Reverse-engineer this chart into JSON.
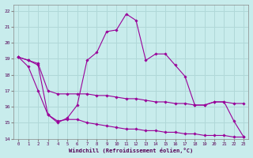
{
  "xlabel": "Windchill (Refroidissement éolien,°C)",
  "bg_color": "#c8ecec",
  "grid_color": "#b0d8d8",
  "line_color": "#990099",
  "ylim": [
    14,
    22.4
  ],
  "xlim": [
    -0.5,
    23.5
  ],
  "yticks": [
    14,
    15,
    16,
    17,
    18,
    19,
    20,
    21,
    22
  ],
  "xticks": [
    0,
    1,
    2,
    3,
    4,
    5,
    6,
    7,
    8,
    9,
    10,
    11,
    12,
    13,
    14,
    15,
    16,
    17,
    18,
    19,
    20,
    21,
    22,
    23
  ],
  "line1_x": [
    0,
    1,
    2,
    3,
    4,
    5,
    6,
    7,
    8,
    9,
    10,
    11,
    12,
    13,
    14,
    15,
    16,
    17,
    18,
    19,
    20,
    21,
    22,
    23
  ],
  "line1_y": [
    19.1,
    18.5,
    17.0,
    15.5,
    15.0,
    15.3,
    16.1,
    18.9,
    19.4,
    20.7,
    20.8,
    21.8,
    21.4,
    18.9,
    19.3,
    19.3,
    18.6,
    17.9,
    16.1,
    16.1,
    16.3,
    16.3,
    15.1,
    14.1
  ],
  "line2_x": [
    0,
    1,
    2,
    3,
    4,
    5,
    6,
    7,
    8,
    9,
    10,
    11,
    12,
    13,
    14,
    15,
    16,
    17,
    18,
    19,
    20,
    21,
    22,
    23
  ],
  "line2_y": [
    19.1,
    18.9,
    18.7,
    17.0,
    16.8,
    16.8,
    16.8,
    16.8,
    16.7,
    16.7,
    16.6,
    16.5,
    16.5,
    16.4,
    16.3,
    16.3,
    16.2,
    16.2,
    16.1,
    16.1,
    16.3,
    16.3,
    16.2,
    16.2
  ],
  "line3_x": [
    0,
    1,
    2,
    3,
    4,
    5,
    6,
    7,
    8,
    9,
    10,
    11,
    12,
    13,
    14,
    15,
    16,
    17,
    18,
    19,
    20,
    21,
    22,
    23
  ],
  "line3_y": [
    19.1,
    18.9,
    18.6,
    15.5,
    15.1,
    15.2,
    15.2,
    15.0,
    14.9,
    14.8,
    14.7,
    14.6,
    14.6,
    14.5,
    14.5,
    14.4,
    14.4,
    14.3,
    14.3,
    14.2,
    14.2,
    14.2,
    14.1,
    14.1
  ]
}
